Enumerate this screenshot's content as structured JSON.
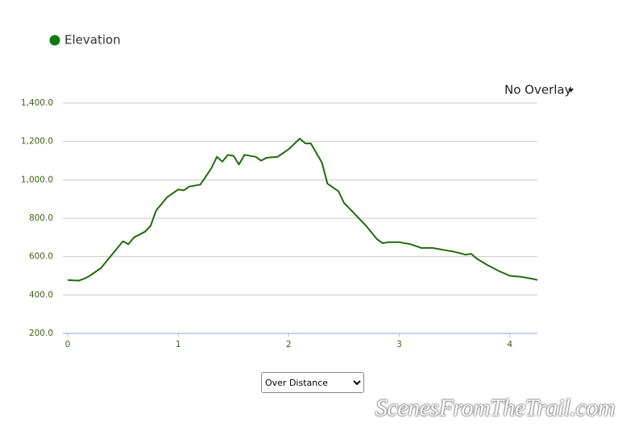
{
  "chart_data": {
    "type": "line",
    "x": [
      0,
      0.1,
      0.15,
      0.2,
      0.3,
      0.4,
      0.5,
      0.55,
      0.6,
      0.7,
      0.75,
      0.8,
      0.9,
      1.0,
      1.05,
      1.1,
      1.2,
      1.3,
      1.35,
      1.4,
      1.45,
      1.5,
      1.55,
      1.6,
      1.7,
      1.75,
      1.8,
      1.9,
      1.95,
      2.0,
      2.1,
      2.15,
      2.2,
      2.3,
      2.35,
      2.45,
      2.5,
      2.6,
      2.7,
      2.8,
      2.85,
      2.9,
      3.0,
      3.1,
      3.2,
      3.3,
      3.4,
      3.5,
      3.6,
      3.65,
      3.7,
      3.8,
      3.9,
      4.0,
      4.1,
      4.2,
      4.25
    ],
    "series": [
      {
        "name": "Elevation",
        "color": "#1f6b0a",
        "values": [
          478,
          475,
          485,
          500,
          540,
          610,
          680,
          665,
          700,
          730,
          760,
          840,
          910,
          950,
          945,
          965,
          975,
          1060,
          1120,
          1095,
          1130,
          1125,
          1080,
          1130,
          1120,
          1100,
          1115,
          1120,
          1140,
          1160,
          1215,
          1190,
          1190,
          1090,
          980,
          940,
          880,
          820,
          760,
          690,
          670,
          675,
          675,
          665,
          645,
          645,
          635,
          625,
          610,
          615,
          590,
          555,
          525,
          500,
          495,
          485,
          478
        ]
      }
    ],
    "xlim": [
      0,
      4.25
    ],
    "ylim": [
      200,
      1400
    ],
    "xticks": [
      0,
      1,
      2,
      3,
      4
    ],
    "yticks": [
      {
        "value": 200,
        "label": "200.0"
      },
      {
        "value": 400,
        "label": "400.0"
      },
      {
        "value": 600,
        "label": "600.0"
      },
      {
        "value": 800,
        "label": "800.0"
      },
      {
        "value": 1000,
        "label": "1,000.0"
      },
      {
        "value": 1200,
        "label": "1,200.0"
      },
      {
        "value": 1400,
        "label": "1,400.0"
      }
    ],
    "grid": true
  },
  "controls": {
    "overlay_menu": "No Overlay",
    "x_mode_select": "Over Distance"
  },
  "watermark": "ScenesFromTheTrail.com"
}
